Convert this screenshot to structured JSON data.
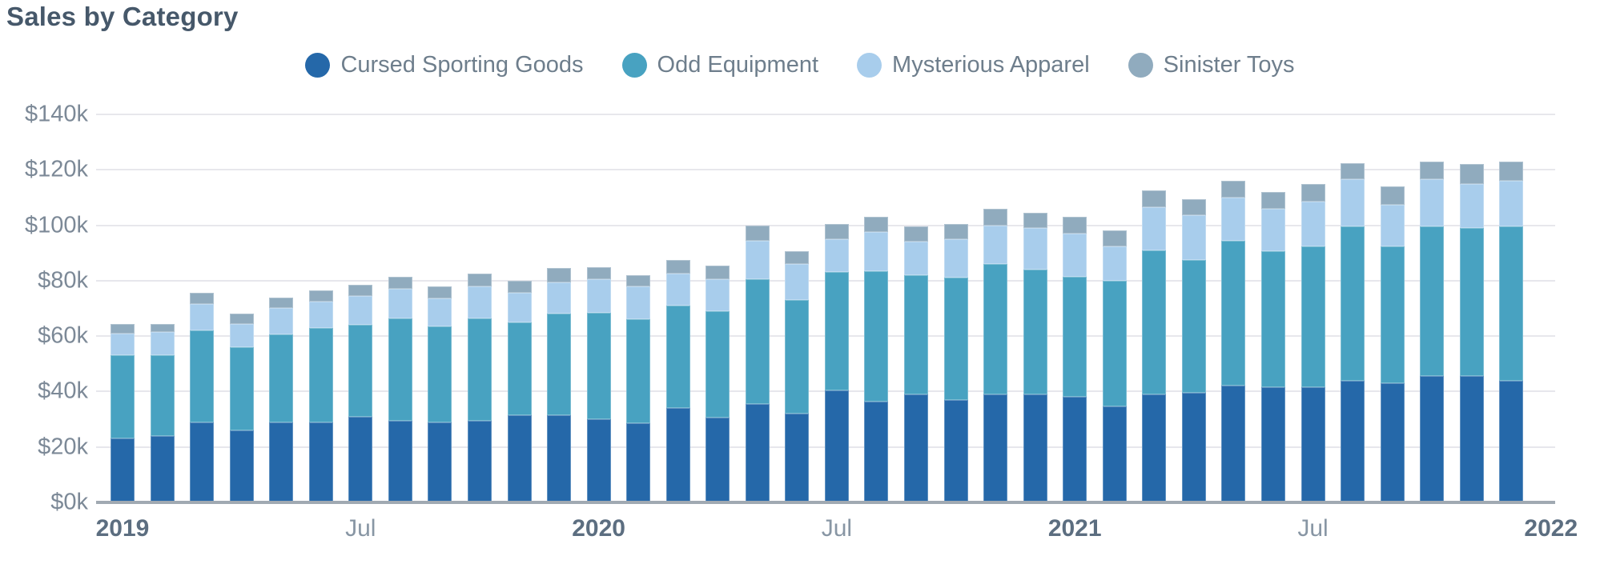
{
  "title": "Sales by Category",
  "chart_data": {
    "type": "bar",
    "stacked": true,
    "title": "Sales by Category",
    "unit": "USD thousands",
    "ylim": [
      0,
      140
    ],
    "y_tick_interval": 20,
    "y_tick_labels": [
      "$0k",
      "$20k",
      "$40k",
      "$60k",
      "$80k",
      "$100k",
      "$120k",
      "$140k"
    ],
    "grid": "horizontal",
    "legend_position": "top",
    "categories": [
      "2019-01",
      "2019-02",
      "2019-03",
      "2019-04",
      "2019-05",
      "2019-06",
      "2019-07",
      "2019-08",
      "2019-09",
      "2019-10",
      "2019-11",
      "2019-12",
      "2020-01",
      "2020-02",
      "2020-03",
      "2020-04",
      "2020-05",
      "2020-06",
      "2020-07",
      "2020-08",
      "2020-09",
      "2020-10",
      "2020-11",
      "2020-12",
      "2021-01",
      "2021-02",
      "2021-03",
      "2021-04",
      "2021-05",
      "2021-06",
      "2021-07",
      "2021-08",
      "2021-09",
      "2021-10",
      "2021-11",
      "2021-12"
    ],
    "x_axis_ticks": [
      {
        "category_index": 0,
        "label": "2019",
        "emphasis": true
      },
      {
        "category_index": 6,
        "label": "Jul",
        "emphasis": false
      },
      {
        "category_index": 12,
        "label": "2020",
        "emphasis": true
      },
      {
        "category_index": 18,
        "label": "Jul",
        "emphasis": false
      },
      {
        "category_index": 24,
        "label": "2021",
        "emphasis": true
      },
      {
        "category_index": 30,
        "label": "Jul",
        "emphasis": false
      },
      {
        "category_index": 36,
        "label": "2022",
        "emphasis": true
      }
    ],
    "series": [
      {
        "name": "Cursed Sporting Goods",
        "color": "#2568a9",
        "values": [
          23,
          24,
          29,
          26,
          29,
          29,
          31,
          29.5,
          29,
          29.5,
          31.5,
          31.5,
          30,
          28.5,
          34,
          30.5,
          35.5,
          32,
          40.5,
          36.5,
          39,
          37,
          39,
          39,
          38,
          34.5,
          39,
          39.5,
          42,
          41.5,
          41.5,
          44,
          43,
          45.5,
          45.5,
          44
        ]
      },
      {
        "name": "Odd Equipment",
        "color": "#48a2c1",
        "values": [
          30,
          29,
          33,
          30,
          31.5,
          34,
          33,
          37,
          34.5,
          37,
          33.5,
          36.5,
          38.5,
          37.5,
          37,
          38.5,
          45,
          41,
          42.5,
          47,
          43,
          44,
          47,
          45,
          43.5,
          45.5,
          52,
          48,
          52.5,
          49,
          51,
          55.5,
          49.5,
          54,
          53.5,
          55.5
        ]
      },
      {
        "name": "Mysterious Apparel",
        "color": "#a8cdec",
        "values": [
          8,
          8.5,
          9.5,
          8.5,
          9.5,
          9.5,
          10.5,
          10.5,
          10,
          11.5,
          10.5,
          11.5,
          12,
          12,
          11.5,
          11.5,
          14,
          13,
          12,
          14,
          12,
          14,
          14,
          15,
          15.5,
          12.5,
          15.5,
          16,
          15.5,
          15.5,
          16,
          17,
          15,
          17,
          16,
          16.5
        ]
      },
      {
        "name": "Sinister Toys",
        "color": "#90abbe",
        "values": [
          3.5,
          3,
          4,
          3.5,
          4,
          4,
          4,
          4.5,
          4.5,
          4.5,
          4.5,
          5,
          4.5,
          4,
          5,
          5,
          5.5,
          4.5,
          5.5,
          5.5,
          5.5,
          5.5,
          6,
          5.5,
          6,
          5.5,
          6,
          6,
          6,
          6,
          6.5,
          6,
          6.5,
          6.5,
          7,
          7
        ]
      }
    ]
  }
}
